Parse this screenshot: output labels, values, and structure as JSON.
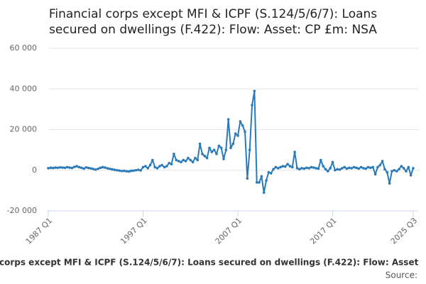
{
  "chart_data": {
    "type": "line",
    "title": [
      "Financial corps except MFI & ICPF (S.124/5/6/7): Loans",
      "secured on dwellings (F.422): Flow: Asset: CP £m: NSA"
    ],
    "categories": [
      "1987 Q1",
      null,
      null,
      null,
      null,
      null,
      null,
      null,
      null,
      null,
      null,
      null,
      null,
      null,
      null,
      null,
      null,
      null,
      null,
      null,
      null,
      null,
      null,
      null,
      null,
      null,
      null,
      null,
      null,
      null,
      null,
      null,
      null,
      null,
      null,
      null,
      null,
      null,
      null,
      null,
      "1997 Q1",
      null,
      null,
      null,
      null,
      null,
      null,
      null,
      null,
      null,
      null,
      null,
      null,
      null,
      null,
      null,
      null,
      null,
      null,
      null,
      null,
      null,
      null,
      null,
      null,
      null,
      null,
      null,
      null,
      null,
      null,
      null,
      null,
      null,
      null,
      null,
      null,
      null,
      null,
      null,
      "2007 Q1",
      null,
      null,
      null,
      null,
      null,
      null,
      null,
      null,
      null,
      null,
      null,
      null,
      null,
      null,
      null,
      null,
      null,
      null,
      null,
      null,
      null,
      null,
      null,
      null,
      null,
      null,
      null,
      null,
      null,
      null,
      null,
      null,
      null,
      null,
      null,
      null,
      null,
      null,
      null,
      "2017 Q1",
      null,
      null,
      null,
      null,
      null,
      null,
      null,
      null,
      null,
      null,
      null,
      null,
      null,
      null,
      null,
      null,
      null,
      null,
      null,
      null,
      null,
      null,
      null,
      null,
      null,
      null,
      null,
      null,
      null,
      null,
      null,
      null,
      null,
      "2025 Q3"
    ],
    "series": [
      {
        "name": "corps except MFI & ICPF (S.124/5/6/7): Loans secured on dwellings (F.422): Flow: Asset",
        "color": "#2a7ab8",
        "values": [
          1000,
          1200,
          1100,
          1300,
          1200,
          1400,
          1300,
          1200,
          1500,
          1300,
          1100,
          1600,
          2000,
          1500,
          1200,
          800,
          1400,
          1100,
          900,
          600,
          300,
          700,
          1200,
          1500,
          1300,
          900,
          700,
          400,
          200,
          0,
          -200,
          -400,
          -300,
          -500,
          -600,
          -300,
          -200,
          0,
          200,
          -100,
          1500,
          2000,
          1000,
          2500,
          5000,
          1500,
          1000,
          2000,
          2500,
          1500,
          2000,
          3500,
          3000,
          8000,
          5000,
          4500,
          4000,
          5000,
          4500,
          6000,
          5000,
          4000,
          6000,
          5000,
          13000,
          8000,
          7000,
          6000,
          11000,
          9000,
          10000,
          8000,
          12000,
          11000,
          5500,
          10000,
          25000,
          11000,
          13000,
          18000,
          17000,
          24000,
          22000,
          19000,
          -4000,
          10000,
          32000,
          39000,
          -6000,
          -6000,
          -3000,
          -11000,
          -5000,
          -1000,
          -1500,
          500,
          1500,
          1000,
          1500,
          2000,
          1800,
          3000,
          2000,
          1500,
          9000,
          1000,
          500,
          1000,
          800,
          1200,
          1000,
          1500,
          1300,
          1000,
          800,
          5000,
          2000,
          500,
          -500,
          1000,
          4000,
          0,
          500,
          300,
          1000,
          1500,
          800,
          1200,
          1000,
          1500,
          1200,
          800,
          1500,
          1000,
          800,
          1500,
          1200,
          1500,
          -2000,
          1500,
          2500,
          4500,
          500,
          -1000,
          -6500,
          -500,
          0,
          -500,
          500,
          2000,
          1000,
          -500,
          1500,
          -2500,
          1000
        ]
      }
    ],
    "ylim": [
      -20000,
      60000
    ],
    "yticks": [
      {
        "value": -20000,
        "label": "-20 000"
      },
      0,
      {
        "value": 20000,
        "label": "20 000"
      },
      {
        "value": 40000,
        "label": "40 000"
      },
      {
        "value": 60000,
        "label": "60 000"
      }
    ],
    "grid": true,
    "source": "Source:"
  }
}
